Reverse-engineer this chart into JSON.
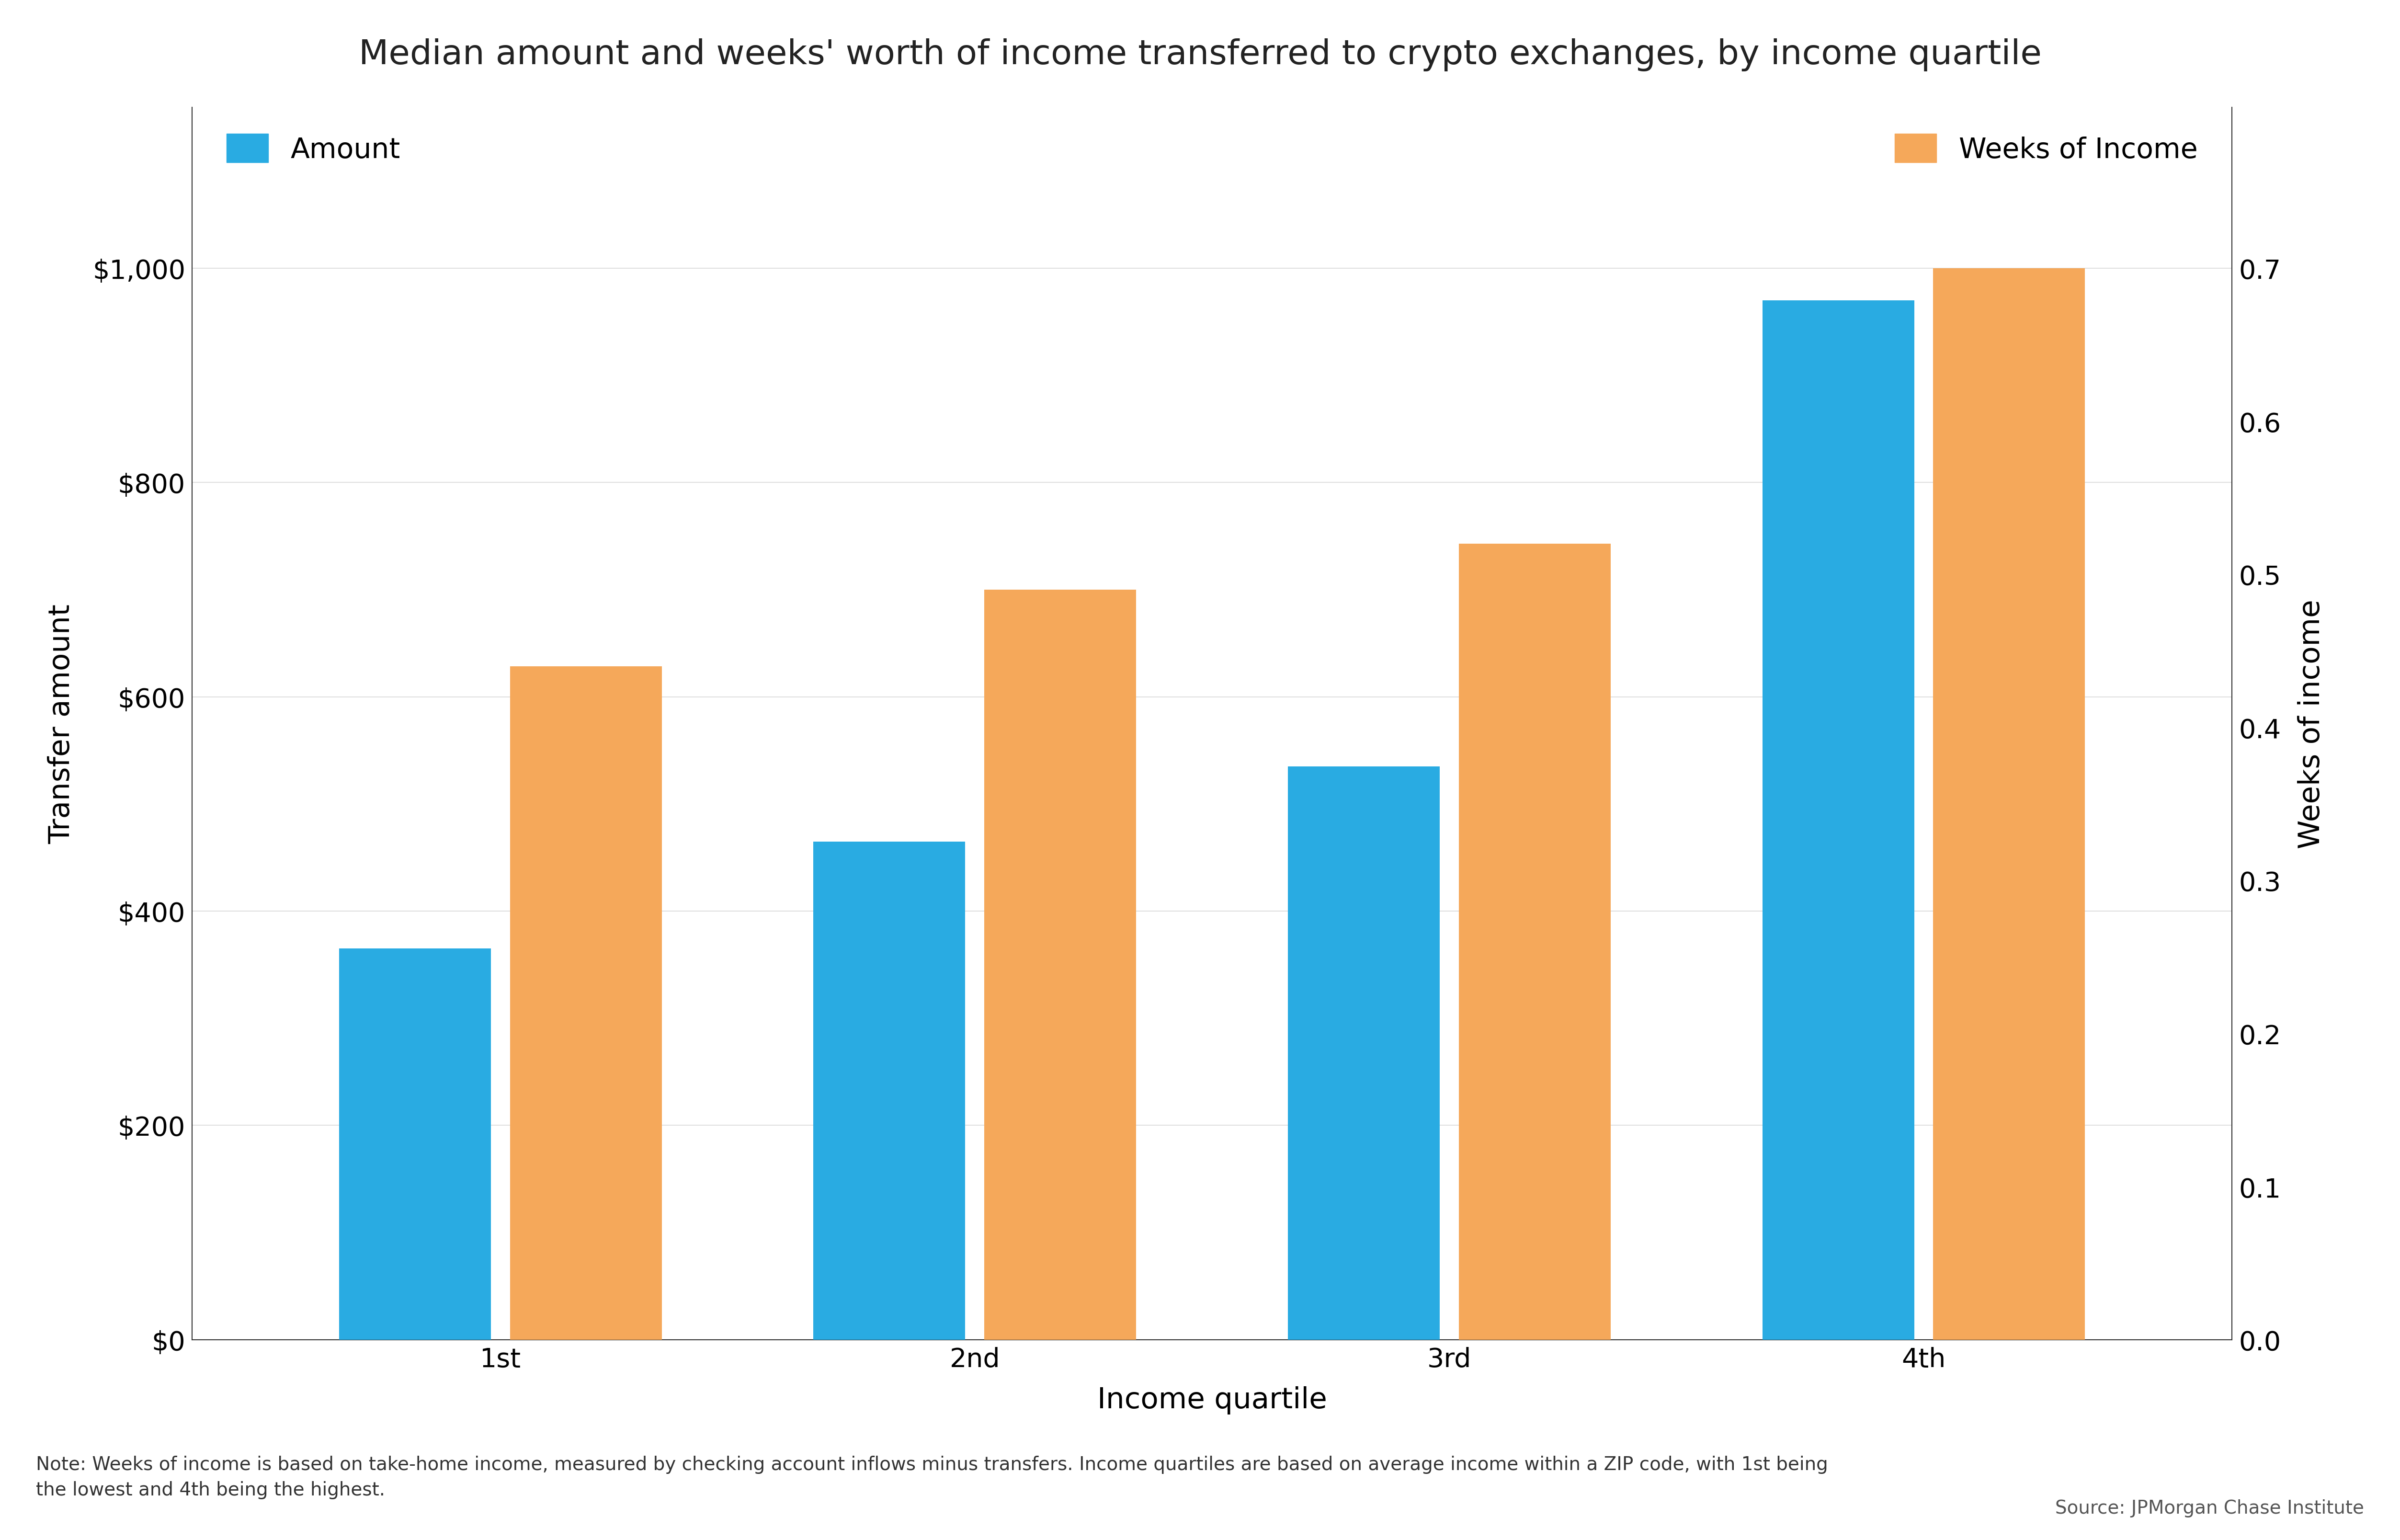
{
  "title": "Median amount and weeks' worth of income transferred to crypto exchanges, by income quartile",
  "categories": [
    "1st",
    "2nd",
    "3rd",
    "4th"
  ],
  "amount_values": [
    365,
    465,
    535,
    970
  ],
  "weeks_values": [
    0.44,
    0.49,
    0.52,
    0.7
  ],
  "amount_color": "#29ABE2",
  "weeks_color": "#F5A85A",
  "xlabel": "Income quartile",
  "ylabel_left": "Transfer amount",
  "ylabel_right": "Weeks of income",
  "ylim_left": [
    0,
    1150
  ],
  "ylim_right": [
    0,
    0.805
  ],
  "yticks_left": [
    0,
    200,
    400,
    600,
    800,
    1000
  ],
  "ytick_labels_left": [
    "$0",
    "$200",
    "$400",
    "$600",
    "$800",
    "$1,000"
  ],
  "yticks_right": [
    0.0,
    0.1,
    0.2,
    0.3,
    0.4,
    0.5,
    0.6,
    0.7
  ],
  "legend_amount_label": "Amount",
  "legend_weeks_label": "Weeks of Income",
  "note_text": "Note: Weeks of income is based on take-home income, measured by checking account inflows minus transfers. Income quartiles are based on average income within a ZIP code, with 1st being\nthe lowest and 4th being the highest.",
  "source_text": "Source: JPMorgan Chase Institute",
  "background_color": "#ffffff",
  "grid_color": "#e0e0e0",
  "title_fontsize": 52,
  "axis_label_fontsize": 44,
  "tick_fontsize": 40,
  "legend_fontsize": 42,
  "note_fontsize": 28,
  "source_fontsize": 28,
  "bar_width": 0.32,
  "bar_gap": 0.04
}
